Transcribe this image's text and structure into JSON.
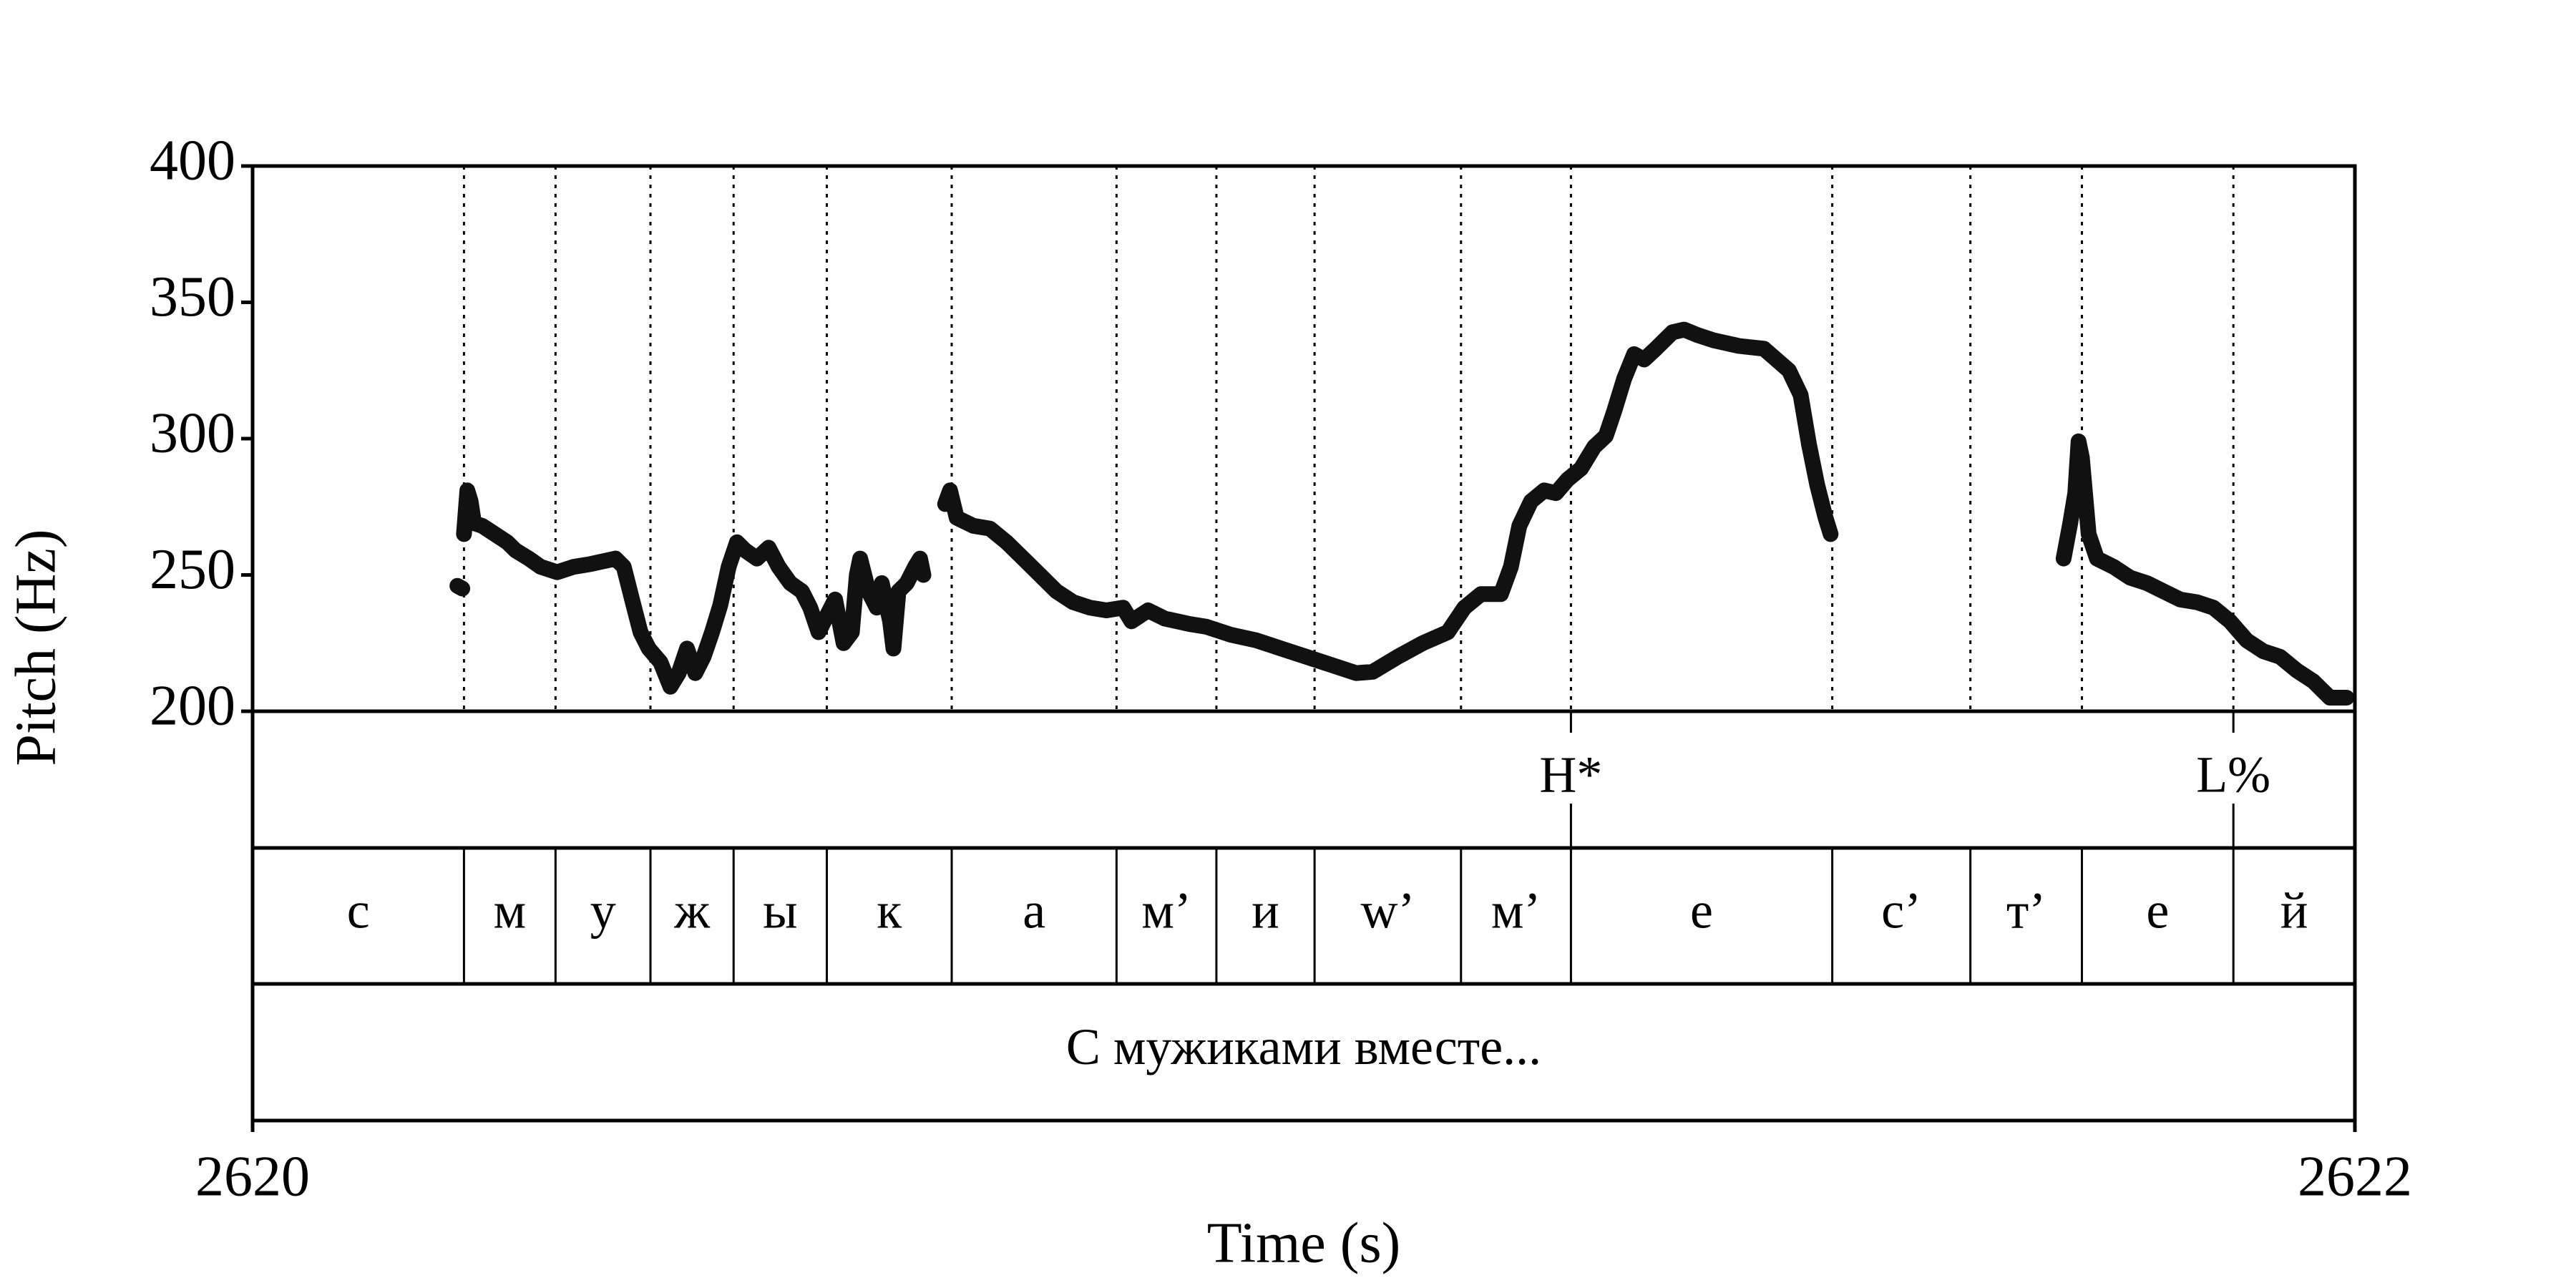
{
  "chart_data": {
    "type": "pitch",
    "x_label": "Time (s)",
    "y_label": "Pitch (Hz)",
    "xlim": [
      2620,
      2622
    ],
    "xticks": [
      2620,
      2622
    ],
    "ylim": [
      200,
      400
    ],
    "yticks": [
      200,
      250,
      300,
      350,
      400
    ],
    "color": "#111111",
    "x": [
      2620.1948,
      2620.1995,
      null,
      2620.2011,
      2620.2043,
      2620.2074,
      2620.2106,
      2620.2185,
      2620.2264,
      2620.2344,
      2620.2423,
      2620.2502,
      2620.2629,
      2620.274,
      2620.2898,
      2620.3056,
      2620.3215,
      2620.3452,
      2620.3531,
      2620.361,
      2620.369,
      2620.3769,
      2620.388,
      2620.3975,
      2620.4054,
      2620.4133,
      2620.4212,
      2620.4291,
      2620.4371,
      2620.445,
      2620.4529,
      2620.4608,
      2620.4687,
      2620.4798,
      2620.4909,
      2620.5004,
      2620.5115,
      2620.5226,
      2620.5305,
      2620.5384,
      2620.5463,
      2620.5542,
      2620.5622,
      2620.5701,
      2620.5748,
      2620.578,
      2620.5859,
      2620.5938,
      2620.5986,
      2620.6065,
      2620.6097,
      2620.6144,
      2620.6223,
      2620.6302,
      2620.635,
      2620.6382,
      null,
      2620.6588,
      2620.6635,
      2620.6698,
      2620.6857,
      2620.7015,
      2620.7173,
      2620.7332,
      2620.749,
      2620.7648,
      2620.7807,
      2620.7965,
      2620.8124,
      2620.8282,
      2620.8361,
      2620.8519,
      2620.8678,
      2620.8915,
      2620.9074,
      2620.9311,
      2620.9549,
      2620.9786,
      2621.0024,
      2621.0261,
      2621.0499,
      2621.0657,
      2621.0895,
      2621.1132,
      2621.137,
      2621.1528,
      2621.1686,
      2621.1876,
      2621.1971,
      2621.2051,
      2621.2162,
      2621.2288,
      2621.2399,
      2621.251,
      2621.2637,
      2621.2763,
      2621.2874,
      2621.2953,
      2621.3048,
      2621.3143,
      2621.3238,
      2621.3349,
      2621.3507,
      2621.3618,
      2621.3745,
      2621.3903,
      2621.4141,
      2621.4378,
      2621.4616,
      2621.4727,
      2621.4806,
      2621.4885,
      2621.4964,
      2621.5012,
      null,
      2621.7229,
      2621.7292,
      2621.734,
      2621.7371,
      2621.7403,
      2621.7467,
      2621.7546,
      2621.7704,
      2621.7862,
      2621.8021,
      2621.8179,
      2621.8337,
      2621.8496,
      2621.8654,
      2621.8812,
      2621.8971,
      2621.9129,
      2621.9287,
      2621.9446,
      2621.9604,
      2621.9762,
      2621.9921
    ],
    "values": [
      246,
      245,
      null,
      265,
      281,
      277,
      269,
      268,
      266,
      264,
      262,
      259,
      256,
      253,
      251,
      253,
      254,
      256,
      253,
      241,
      229,
      223,
      218,
      209,
      214,
      223,
      214,
      220,
      229,
      239,
      253,
      262,
      259,
      256,
      260,
      253,
      247,
      244,
      238,
      229,
      235,
      241,
      225,
      229,
      250,
      256,
      244,
      238,
      247,
      233,
      223,
      244,
      247,
      253,
      256,
      250,
      null,
      276,
      281,
      271,
      268,
      267,
      262,
      256,
      250,
      244,
      240,
      238,
      237,
      238,
      233,
      237,
      234,
      232,
      231,
      228,
      226,
      223,
      220,
      217,
      214,
      214.5,
      220,
      225,
      229,
      238,
      243,
      243,
      253,
      268,
      277,
      281,
      280,
      285,
      289,
      297,
      301,
      310,
      322,
      331,
      329,
      333,
      339,
      340,
      338,
      336,
      334,
      333,
      325,
      316,
      298,
      283,
      271,
      265,
      null,
      256,
      269,
      280,
      299,
      293,
      265,
      256,
      253,
      249,
      247,
      244,
      241,
      240,
      238,
      233,
      226,
      222,
      220,
      215,
      211,
      205,
      205
    ],
    "tone_tier": {
      "times": [
        2621.2542,
        2621.8844
      ],
      "labels": [
        "H*",
        "L%"
      ]
    },
    "segment_tier": {
      "boundaries": [
        2620.2011,
        2620.2882,
        2620.3785,
        2620.4576,
        2620.5463,
        2620.6651,
        2620.8219,
        2620.9169,
        2621.0103,
        2621.1496,
        2621.2542,
        2621.5028,
        2621.6342,
        2621.7403,
        2621.8844
      ],
      "labels": [
        "с",
        "м",
        "у",
        "ж",
        "ы",
        "к",
        "а",
        "м’",
        "и",
        "w’",
        "м’",
        "е",
        "с’",
        "т’",
        "е",
        "й"
      ]
    },
    "word_tier": {
      "labels": [
        "С мужиками вместе..."
      ]
    }
  }
}
